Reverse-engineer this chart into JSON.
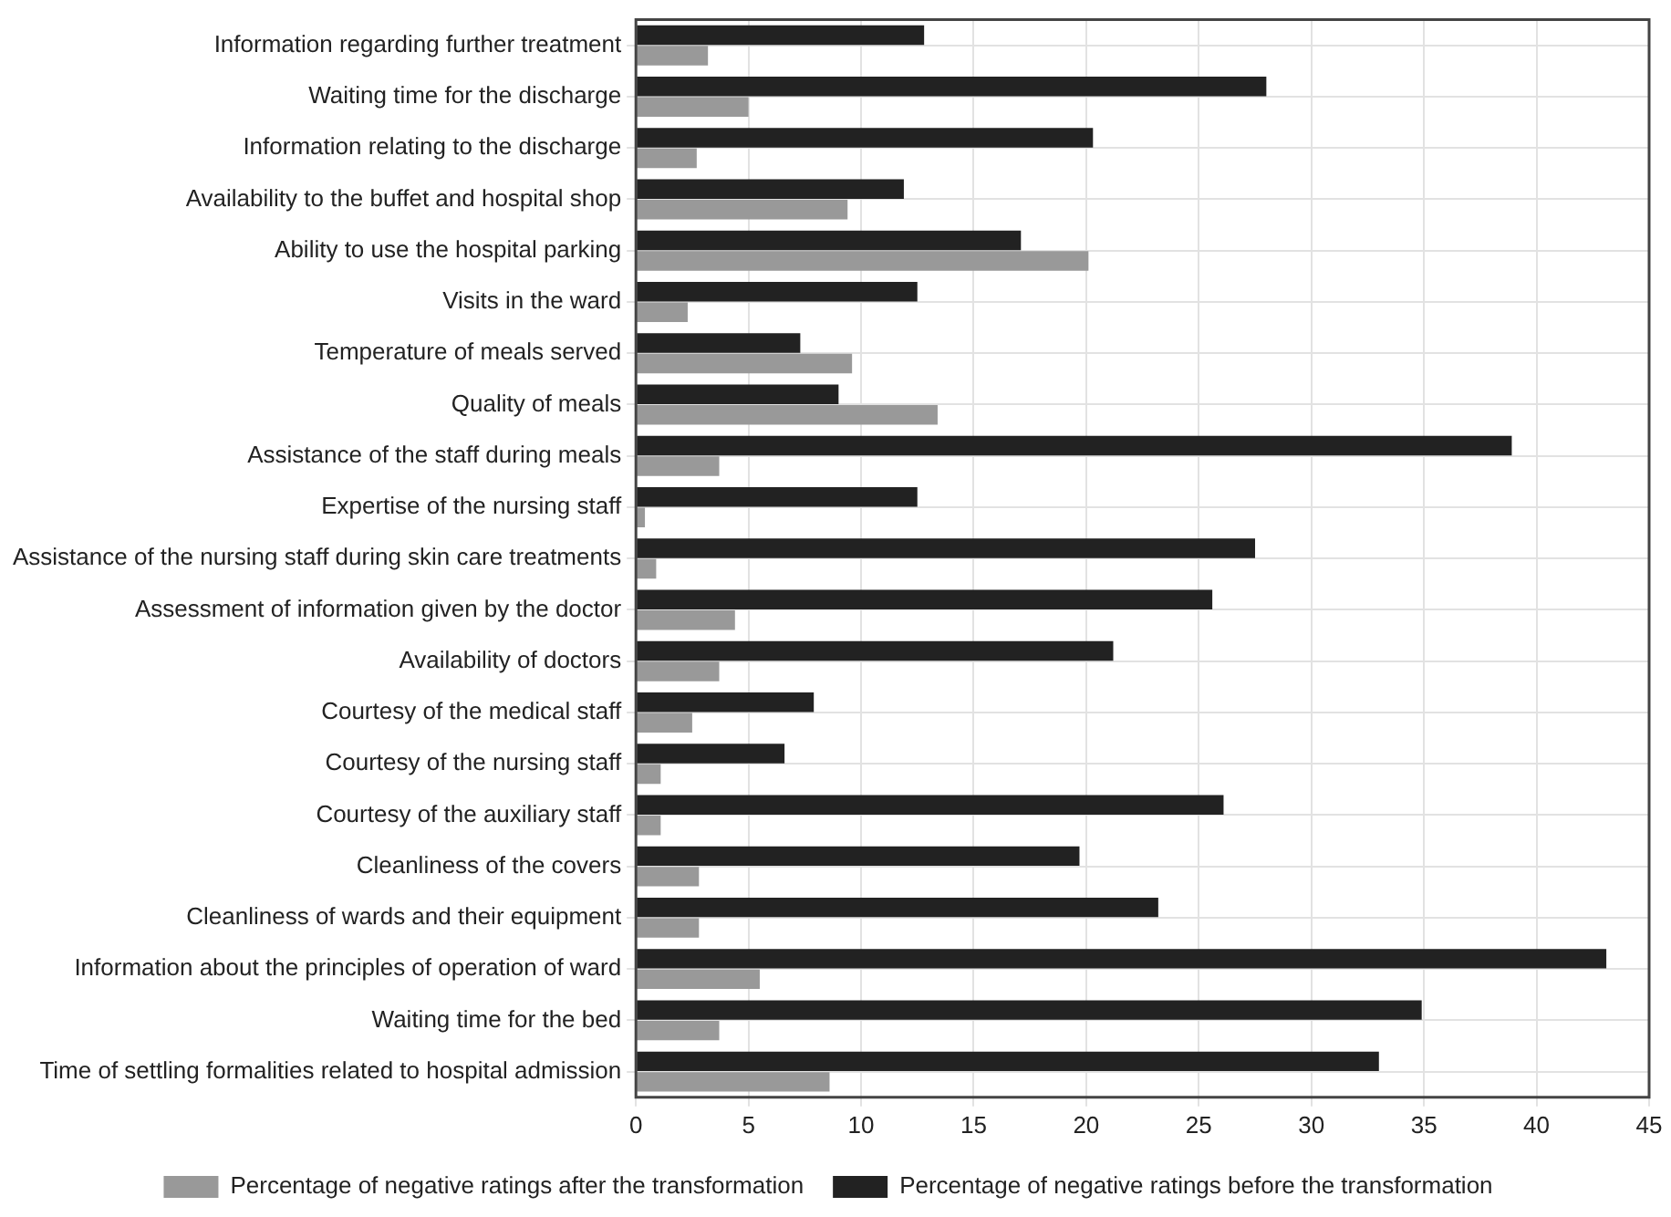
{
  "chart_data": {
    "type": "bar",
    "orientation": "horizontal",
    "categories": [
      "Information regarding further treatment",
      "Waiting time for the discharge",
      "Information relating to the discharge",
      "Availability to the buffet and hospital shop",
      "Ability to use the hospital parking",
      "Visits in the ward",
      "Temperature of meals served",
      "Quality of meals",
      "Assistance of the staff during meals",
      "Expertise of the nursing staff",
      "Assistance of the nursing staff during skin care treatments",
      "Assessment of information given by the doctor",
      "Availability of doctors",
      "Courtesy of the medical staff",
      "Courtesy of the nursing staff",
      "Courtesy of the auxiliary staff",
      "Cleanliness of the covers",
      "Cleanliness of wards and their equipment",
      "Information about the principles of operation of ward",
      "Waiting time for the bed",
      "Time of settling formalities related to hospital admission"
    ],
    "series": [
      {
        "name": "Percentage of negative ratings before the transformation",
        "color": "#222222",
        "values": [
          12.8,
          28.0,
          20.3,
          11.9,
          17.1,
          12.5,
          7.3,
          9.0,
          38.9,
          12.5,
          27.5,
          25.6,
          21.2,
          7.9,
          6.6,
          26.1,
          19.7,
          23.2,
          43.1,
          34.9,
          33.0
        ]
      },
      {
        "name": "Percentage of negative ratings after the transformation",
        "color": "#999999",
        "values": [
          3.2,
          5.0,
          2.7,
          9.4,
          20.1,
          2.3,
          9.6,
          13.4,
          3.7,
          0.4,
          0.9,
          4.4,
          3.7,
          2.5,
          1.1,
          1.1,
          2.8,
          2.8,
          5.5,
          3.7,
          8.6
        ]
      }
    ],
    "xlim": [
      0,
      45
    ],
    "xticks": [
      0,
      5,
      10,
      15,
      20,
      25,
      30,
      35,
      40,
      45
    ],
    "grid": true,
    "legend": "bottom"
  }
}
